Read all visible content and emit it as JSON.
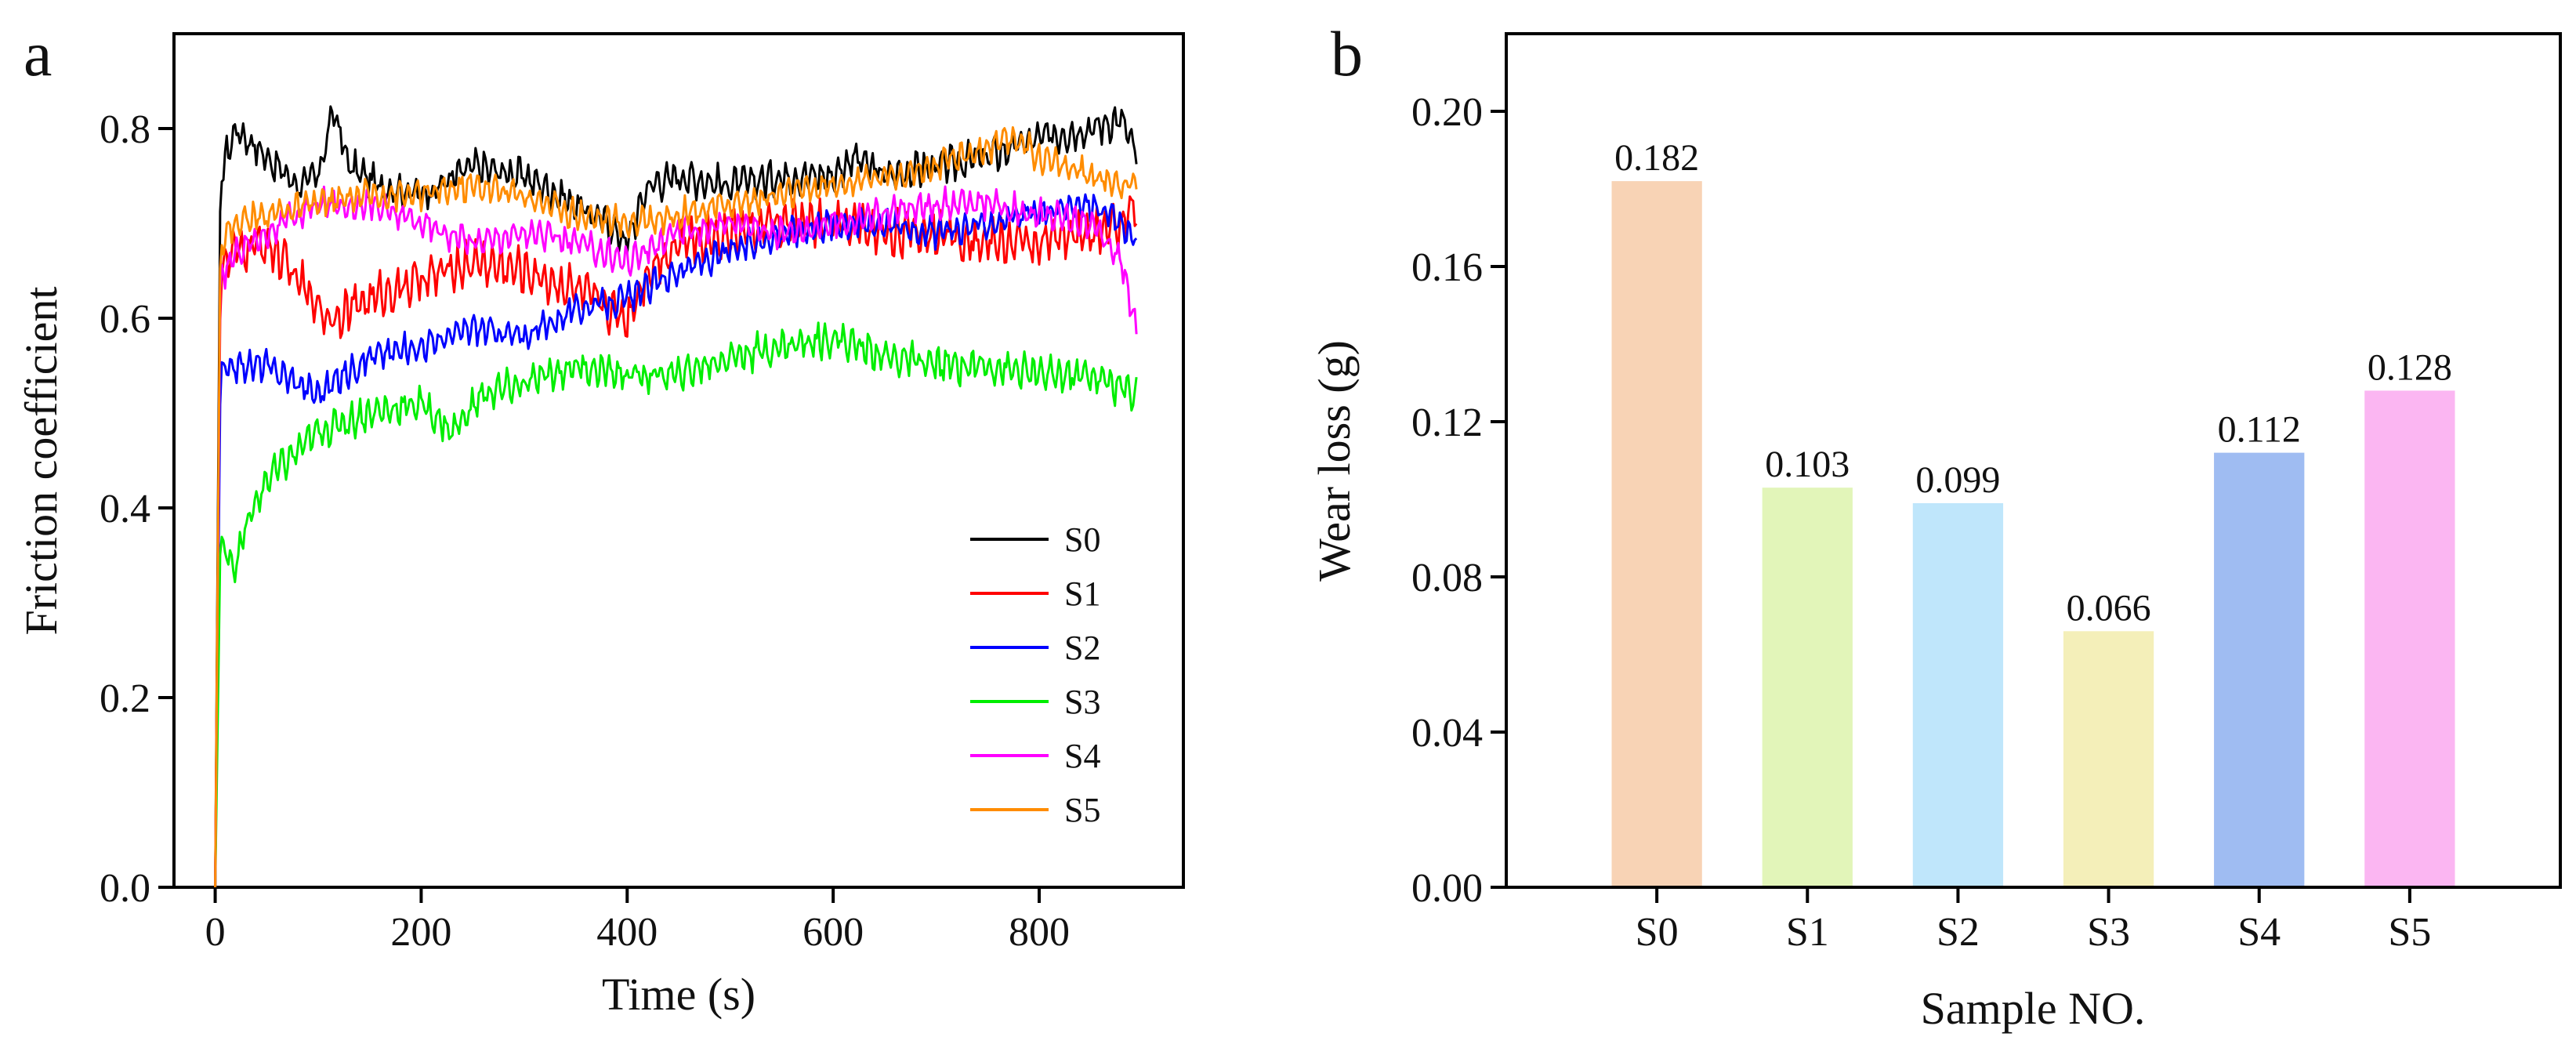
{
  "chart_data": [
    {
      "panel_label": "a",
      "type": "line",
      "xlabel": "Time (s)",
      "ylabel": "Friction coefficient",
      "xlim": [
        -40,
        940
      ],
      "ylim": [
        0.0,
        0.9
      ],
      "xticks": [
        "0",
        "200",
        "400",
        "600",
        "800"
      ],
      "xtick_values": [
        0,
        200,
        400,
        600,
        800
      ],
      "yticks": [
        "0.0",
        "0.2",
        "0.4",
        "0.6",
        "0.8"
      ],
      "ytick_values": [
        0.0,
        0.2,
        0.4,
        0.6,
        0.8
      ],
      "legend_position": "bottom-right",
      "grid": false,
      "series": [
        {
          "name": "S0",
          "color": "#000000",
          "x": [
            0,
            5,
            10,
            20,
            30,
            50,
            80,
            100,
            115,
            130,
            160,
            200,
            250,
            300,
            350,
            380,
            400,
            420,
            450,
            500,
            550,
            600,
            620,
            650,
            700,
            750,
            800,
            850,
            880,
            895
          ],
          "y": [
            0.0,
            0.74,
            0.77,
            0.8,
            0.79,
            0.77,
            0.74,
            0.75,
            0.82,
            0.76,
            0.74,
            0.73,
            0.76,
            0.75,
            0.72,
            0.7,
            0.68,
            0.74,
            0.75,
            0.74,
            0.75,
            0.75,
            0.77,
            0.75,
            0.76,
            0.77,
            0.79,
            0.8,
            0.81,
            0.77
          ],
          "noise": 0.014
        },
        {
          "name": "S1",
          "color": "#ff0000",
          "x": [
            0,
            5,
            20,
            50,
            80,
            110,
            150,
            200,
            250,
            300,
            350,
            400,
            420,
            450,
            500,
            550,
            600,
            650,
            700,
            750,
            800,
            850,
            880,
            895
          ],
          "y": [
            0.0,
            0.65,
            0.67,
            0.68,
            0.64,
            0.6,
            0.62,
            0.64,
            0.66,
            0.65,
            0.63,
            0.6,
            0.65,
            0.68,
            0.69,
            0.7,
            0.7,
            0.69,
            0.69,
            0.68,
            0.68,
            0.69,
            0.7,
            0.72
          ],
          "noise": 0.018
        },
        {
          "name": "S2",
          "color": "#0000ff",
          "x": [
            0,
            5,
            20,
            50,
            100,
            150,
            200,
            250,
            300,
            350,
            400,
            450,
            500,
            550,
            600,
            650,
            700,
            750,
            800,
            850,
            880,
            895
          ],
          "y": [
            0.0,
            0.54,
            0.55,
            0.55,
            0.52,
            0.56,
            0.57,
            0.59,
            0.58,
            0.61,
            0.62,
            0.65,
            0.67,
            0.69,
            0.7,
            0.7,
            0.69,
            0.7,
            0.71,
            0.72,
            0.7,
            0.68
          ],
          "noise": 0.012
        },
        {
          "name": "S3",
          "color": "#00ee00",
          "x": [
            0,
            5,
            20,
            30,
            50,
            80,
            100,
            150,
            200,
            230,
            260,
            300,
            350,
            400,
            450,
            500,
            550,
            600,
            650,
            700,
            750,
            800,
            850,
            895
          ],
          "y": [
            0.0,
            0.36,
            0.34,
            0.38,
            0.43,
            0.46,
            0.48,
            0.5,
            0.51,
            0.48,
            0.52,
            0.53,
            0.55,
            0.54,
            0.54,
            0.56,
            0.57,
            0.58,
            0.56,
            0.55,
            0.55,
            0.54,
            0.54,
            0.52
          ],
          "noise": 0.014
        },
        {
          "name": "S4",
          "color": "#ff00ff",
          "x": [
            0,
            5,
            20,
            50,
            100,
            150,
            200,
            250,
            300,
            350,
            400,
            450,
            500,
            550,
            600,
            650,
            700,
            750,
            800,
            850,
            880,
            895
          ],
          "y": [
            0.0,
            0.64,
            0.67,
            0.69,
            0.72,
            0.72,
            0.7,
            0.68,
            0.69,
            0.68,
            0.66,
            0.69,
            0.7,
            0.69,
            0.7,
            0.71,
            0.72,
            0.72,
            0.71,
            0.7,
            0.66,
            0.58
          ],
          "noise": 0.012
        },
        {
          "name": "S5",
          "color": "#ff8c00",
          "x": [
            0,
            5,
            20,
            50,
            100,
            150,
            200,
            250,
            300,
            350,
            400,
            450,
            500,
            550,
            600,
            650,
            700,
            750,
            780,
            800,
            850,
            895
          ],
          "y": [
            0.0,
            0.68,
            0.7,
            0.71,
            0.72,
            0.73,
            0.73,
            0.74,
            0.73,
            0.71,
            0.7,
            0.71,
            0.72,
            0.73,
            0.74,
            0.75,
            0.76,
            0.78,
            0.79,
            0.77,
            0.75,
            0.74
          ],
          "noise": 0.012
        }
      ]
    },
    {
      "panel_label": "b",
      "type": "bar",
      "xlabel": "Sample NO.",
      "ylabel": "Wear loss (g)",
      "ylim": [
        0.0,
        0.22
      ],
      "yticks": [
        "0.00",
        "0.04",
        "0.08",
        "0.12",
        "0.16",
        "0.20"
      ],
      "ytick_values": [
        0.0,
        0.04,
        0.08,
        0.12,
        0.16,
        0.2
      ],
      "categories": [
        "S0",
        "S1",
        "S2",
        "S3",
        "S4",
        "S5"
      ],
      "values": [
        0.182,
        0.103,
        0.099,
        0.066,
        0.112,
        0.128
      ],
      "value_labels": [
        "0.182",
        "0.103",
        "0.099",
        "0.066",
        "0.112",
        "0.128"
      ],
      "colors": [
        "#f8d3b5",
        "#e2f5b9",
        "#bfe6fb",
        "#f4efb9",
        "#9fbcf2",
        "#fbb6f2"
      ]
    }
  ]
}
